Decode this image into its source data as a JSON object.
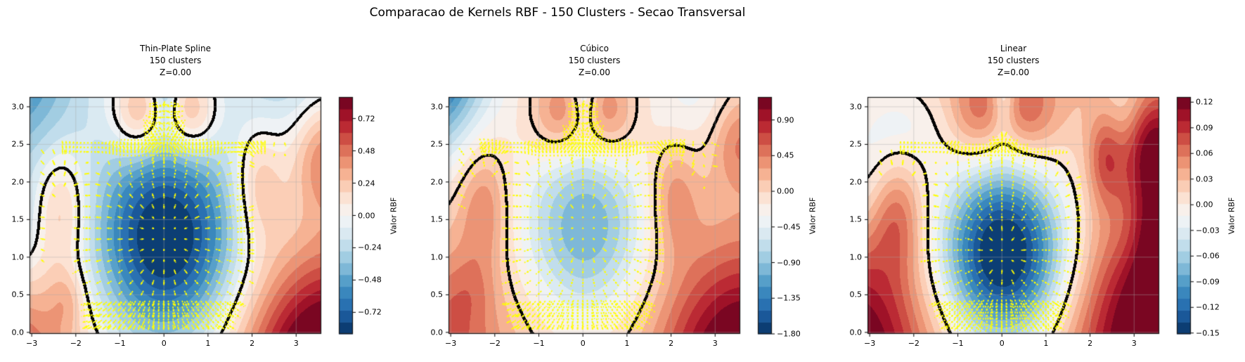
{
  "figure": {
    "title": "Comparacao de Kernels RBF - 150 Clusters - Secao Transversal",
    "background": "#ffffff"
  },
  "colormap": {
    "name": "RdBu_r",
    "stops": [
      "#053061",
      "#2166ac",
      "#4393c3",
      "#92c5de",
      "#d1e5f0",
      "#f7f7f7",
      "#fddbc7",
      "#f4a582",
      "#d6604d",
      "#b2182b",
      "#67001f"
    ]
  },
  "styles": {
    "zero_contour_color": "#000000",
    "marker_color": "#ffff00",
    "grid_color": "rgba(170,170,170,0.55)",
    "spine_color": "#1a1a1a",
    "tick_color": "#000000"
  },
  "axes_shared": {
    "xlim": [
      -3.05,
      3.57
    ],
    "ylim": [
      -0.02,
      3.13
    ],
    "x_tick_values": [
      -3,
      -2,
      -1,
      0,
      1,
      2,
      3
    ],
    "x_tick_labels": [
      "−3",
      "−2",
      "−1",
      "0",
      "1",
      "2",
      "3"
    ],
    "y_tick_values": [
      0,
      0.5,
      1,
      1.5,
      2,
      2.5,
      3
    ],
    "y_tick_labels": [
      "0.0",
      "0.5",
      "1.0",
      "1.5",
      "2.0",
      "2.5",
      "3.0"
    ],
    "grid": true
  },
  "markers": {
    "color": "#ffff00",
    "grid_dx": 0.25,
    "grid_dy": 0.145,
    "grid_regions": [
      [
        -2.55,
        0.08,
        2.55,
        2.32
      ],
      [
        -0.45,
        2.32,
        0.45,
        3.05
      ],
      [
        -2.95,
        0.95,
        -1.5,
        2.5
      ],
      [
        1.55,
        1.05,
        3.42,
        2.6
      ]
    ],
    "dense_bands": [
      [
        -0.42,
        2.56,
        0.44,
        3.06,
        0.085,
        0.075
      ],
      [
        -2.3,
        2.4,
        2.35,
        2.52,
        0.082,
        0.06
      ],
      [
        -1.8,
        0.06,
        1.85,
        0.44,
        0.112,
        0.08
      ]
    ]
  },
  "chart_data": [
    {
      "type": "filled_contour",
      "title_lines": [
        "Thin-Plate Spline",
        "150 clusters",
        "Z=0.00"
      ],
      "levels": 20,
      "zero_contour": true,
      "colorbar": {
        "label": "Valor RBF",
        "range": [
          -0.88,
          0.88
        ],
        "tick_values": [
          0.72,
          0.48,
          0.24,
          0.0,
          -0.24,
          -0.48,
          -0.72
        ],
        "tick_labels": [
          "0.72",
          "0.48",
          "0.24",
          "0.00",
          "−0.24",
          "−0.48",
          "−0.72"
        ]
      },
      "marker_threshold": 0.12,
      "quiver_scale": 26,
      "field_gaussians": [
        [
          -0.95,
          0.05,
          1.25,
          1.15,
          0.95
        ],
        [
          1.25,
          3.8,
          -0.7,
          1.4,
          1.2
        ],
        [
          0.72,
          -3.8,
          -0.7,
          1.4,
          1.1
        ],
        [
          0.32,
          -2.35,
          1.65,
          0.45,
          0.55
        ],
        [
          0.3,
          2.15,
          1.95,
          0.4,
          0.55
        ],
        [
          0.42,
          3.65,
          2.35,
          0.5,
          0.55
        ],
        [
          0.4,
          -0.58,
          2.9,
          0.42,
          0.4
        ],
        [
          0.4,
          0.62,
          2.9,
          0.42,
          0.4
        ],
        [
          -0.33,
          0.02,
          3.3,
          0.2,
          0.38
        ],
        [
          -0.62,
          -3.5,
          3.6,
          1.1,
          1.0
        ],
        [
          -0.28,
          2.8,
          3.6,
          1.1,
          0.7
        ],
        [
          -0.3,
          -3.5,
          1.35,
          0.6,
          0.55
        ],
        [
          0.18,
          -2.2,
          0.45,
          0.3,
          0.3
        ]
      ]
    },
    {
      "type": "filled_contour",
      "title_lines": [
        "Cúbico",
        "150 clusters",
        "Z=0.00"
      ],
      "levels": 20,
      "zero_contour": true,
      "colorbar": {
        "label": "Valor RBF",
        "range": [
          -1.8,
          1.19
        ],
        "tick_values": [
          0.9,
          0.45,
          0.0,
          -0.45,
          -0.9,
          -1.35,
          -1.8
        ],
        "tick_labels": [
          "0.90",
          "0.45",
          "0.00",
          "−0.45",
          "−0.90",
          "−1.35",
          "−1.80"
        ]
      },
      "marker_threshold": 0.18,
      "quiver_scale": 45,
      "field_gaussians": [
        [
          -1.05,
          0.05,
          1.4,
          1.05,
          0.9
        ],
        [
          1.55,
          3.7,
          -0.6,
          1.35,
          1.15
        ],
        [
          0.85,
          -3.8,
          -0.5,
          1.5,
          1.0
        ],
        [
          -1.9,
          -3.6,
          3.7,
          1.0,
          0.9
        ],
        [
          0.5,
          -2.25,
          1.7,
          0.42,
          0.62
        ],
        [
          0.45,
          2.05,
          1.8,
          0.4,
          0.55
        ],
        [
          0.55,
          -0.55,
          2.88,
          0.45,
          0.42
        ],
        [
          0.55,
          0.6,
          2.88,
          0.45,
          0.42
        ],
        [
          -0.45,
          0.02,
          3.25,
          0.2,
          0.4
        ],
        [
          0.5,
          3.55,
          2.55,
          0.45,
          0.45
        ],
        [
          -0.35,
          2.5,
          3.2,
          0.8,
          0.6
        ],
        [
          0.2,
          -2.6,
          0.55,
          0.4,
          0.35
        ]
      ]
    },
    {
      "type": "filled_contour",
      "title_lines": [
        "Linear",
        "150 clusters",
        "Z=0.00"
      ],
      "levels": 20,
      "zero_contour": true,
      "colorbar": {
        "label": "Valor RBF",
        "range": [
          -0.151,
          0.126
        ],
        "tick_values": [
          0.12,
          0.09,
          0.06,
          0.03,
          0.0,
          -0.03,
          -0.06,
          -0.09,
          -0.12,
          -0.15
        ],
        "tick_labels": [
          "0.12",
          "0.09",
          "0.06",
          "0.03",
          "0.00",
          "−0.03",
          "−0.06",
          "−0.09",
          "−0.12",
          "−0.15"
        ]
      },
      "marker_threshold": 0.014,
      "quiver_scale": 26,
      "field_gaussians": [
        [
          -0.175,
          0.05,
          1.05,
          1.0,
          0.82
        ],
        [
          0.165,
          3.8,
          -0.4,
          1.6,
          1.4
        ],
        [
          0.155,
          -3.7,
          -0.5,
          1.5,
          1.3
        ],
        [
          0.035,
          0.3,
          3.8,
          2.8,
          1.2
        ],
        [
          -0.035,
          -2.3,
          2.75,
          0.75,
          0.5
        ],
        [
          -0.03,
          -3.2,
          1.9,
          0.55,
          0.55
        ],
        [
          0.05,
          -2.4,
          1.55,
          0.42,
          0.55
        ],
        [
          0.045,
          -0.55,
          2.9,
          0.45,
          0.42
        ],
        [
          0.045,
          0.62,
          2.9,
          0.45,
          0.42
        ],
        [
          -0.045,
          0.04,
          3.25,
          0.18,
          0.42
        ],
        [
          0.05,
          2.35,
          2.35,
          0.28,
          0.45
        ],
        [
          0.09,
          3.75,
          1.7,
          0.75,
          1.0
        ],
        [
          0.05,
          3.35,
          2.6,
          0.4,
          0.45
        ],
        [
          -0.03,
          2.85,
          2.95,
          0.45,
          0.4
        ],
        [
          -0.025,
          2.9,
          1.35,
          0.4,
          0.5
        ]
      ]
    }
  ]
}
